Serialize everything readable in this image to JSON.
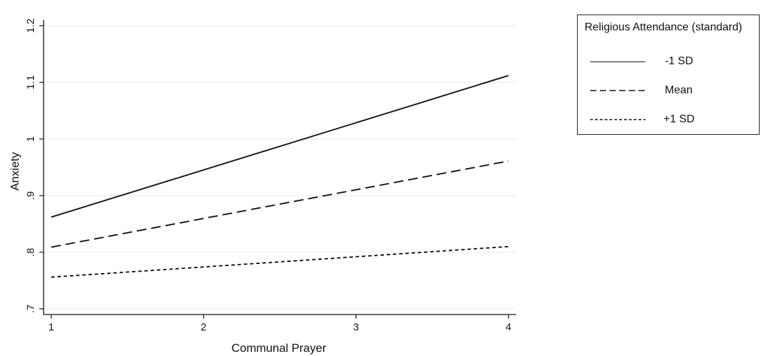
{
  "chart_data": {
    "type": "line",
    "title": "",
    "xlabel": "Communal Prayer",
    "ylabel": "Anxiety",
    "x": [
      1,
      4
    ],
    "xlim": [
      0.95,
      4.05
    ],
    "ylim": [
      0.69,
      1.21
    ],
    "xticks": [
      1,
      2,
      3,
      4
    ],
    "xtick_labels": [
      "1",
      "2",
      "3",
      "4"
    ],
    "yticks": [
      0.7,
      0.8,
      0.9,
      1.0,
      1.1,
      1.2
    ],
    "ytick_labels": [
      ".7",
      ".8",
      ".9",
      "1",
      "1.1",
      "1.2"
    ],
    "grid": true,
    "legend_placement": "top-right, outside plot",
    "legend_title": "Religious Attendance (standard)",
    "series": [
      {
        "name": "-1 SD",
        "values": [
          0.862,
          1.112
        ],
        "line_style": "solid"
      },
      {
        "name": "Mean",
        "values": [
          0.809,
          0.961
        ],
        "line_style": "long-dash"
      },
      {
        "name": "+1 SD",
        "values": [
          0.756,
          0.81
        ],
        "line_style": "short-dash"
      }
    ]
  }
}
